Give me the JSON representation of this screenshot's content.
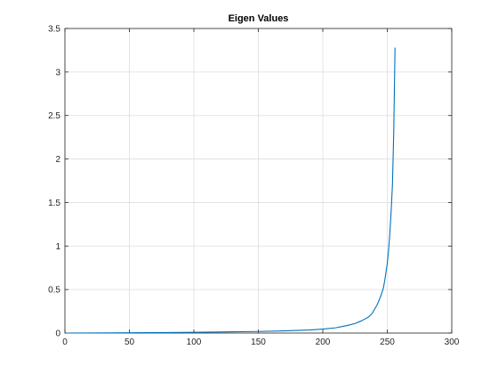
{
  "chart_data": {
    "type": "line",
    "title": "Eigen Values",
    "xlabel": "",
    "ylabel": "",
    "xlim": [
      0,
      300
    ],
    "ylim": [
      0,
      3.5
    ],
    "xticks": [
      0,
      50,
      100,
      150,
      200,
      250,
      300
    ],
    "yticks": [
      0,
      0.5,
      1,
      1.5,
      2,
      2.5,
      3,
      3.5
    ],
    "xtick_labels": [
      "0",
      "50",
      "100",
      "150",
      "200",
      "250",
      "300"
    ],
    "ytick_labels": [
      "0",
      "0.5",
      "1",
      "1.5",
      "2",
      "2.5",
      "3",
      "3.5"
    ],
    "grid": true,
    "legend": "none",
    "series_color": "#0072BD",
    "series": [
      {
        "x": [
          1,
          20,
          50,
          80,
          100,
          120,
          150,
          170,
          190,
          200,
          210,
          215,
          220,
          225,
          230,
          235,
          238,
          240,
          242,
          244,
          246,
          247,
          248,
          249,
          250,
          251,
          252,
          253,
          254,
          255,
          256
        ],
        "y": [
          0,
          0.001,
          0.003,
          0.006,
          0.009,
          0.012,
          0.018,
          0.025,
          0.035,
          0.045,
          0.06,
          0.075,
          0.09,
          0.11,
          0.14,
          0.18,
          0.22,
          0.27,
          0.32,
          0.39,
          0.47,
          0.52,
          0.6,
          0.7,
          0.8,
          0.95,
          1.15,
          1.4,
          1.7,
          2.3,
          3.28
        ]
      }
    ]
  }
}
